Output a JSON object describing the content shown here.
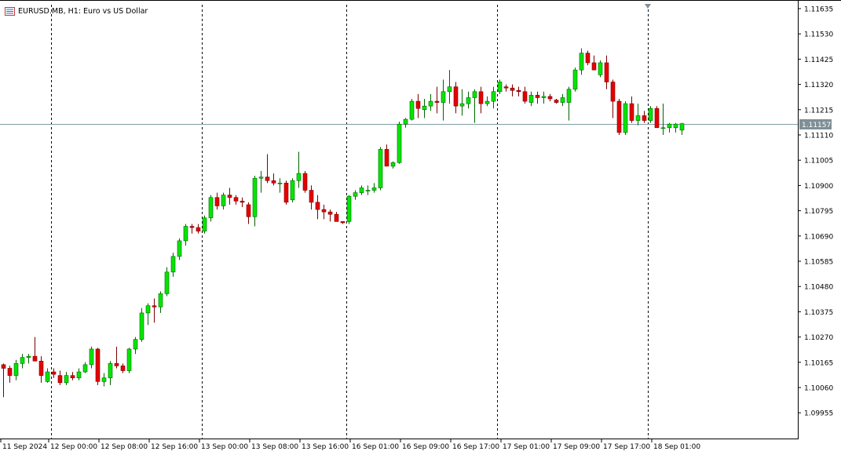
{
  "header": {
    "symbol": "EURUSD.MB",
    "timeframe": "H1",
    "description": "Euro vs US Dollar",
    "title_text": "EURUSD.MB, H1:  Euro vs US Dollar"
  },
  "colors": {
    "background": "#ffffff",
    "bull_candle": "#00e600",
    "bear_candle": "#e60000",
    "candle_outline": "#006400",
    "grid_dashed": "#000000",
    "bid_line": "#7f9fa6",
    "price_tag": "#7f8f96"
  },
  "current_price_label": "1.11157",
  "chart_data": {
    "type": "candlestick",
    "symbol": "EURUSD.MB",
    "timeframe": "H1",
    "y_axis_ticks": [
      "1.11635",
      "1.11530",
      "1.11425",
      "1.11320",
      "1.11215",
      "1.11110",
      "1.11005",
      "1.10900",
      "1.10795",
      "1.10690",
      "1.10585",
      "1.10480",
      "1.10375",
      "1.10270",
      "1.10165",
      "1.10060",
      "1.09955"
    ],
    "ylim": [
      1.0989,
      1.1165
    ],
    "x_axis_labels": [
      "11 Sep 2024",
      "12 Sep 00:00",
      "12 Sep 08:00",
      "12 Sep 16:00",
      "13 Sep 00:00",
      "13 Sep 08:00",
      "13 Sep 16:00",
      "16 Sep 01:00",
      "16 Sep 09:00",
      "16 Sep 17:00",
      "17 Sep 01:00",
      "17 Sep 09:00",
      "17 Sep 17:00",
      "18 Sep 01:00"
    ],
    "period_separators": [
      "12 Sep 00:00",
      "13 Sep 00:00",
      "16 Sep 01:00",
      "17 Sep 01:00",
      "18 Sep 01:00"
    ],
    "current_price": 1.11157,
    "grid": false,
    "candles": [
      [
        1.10155,
        1.1016,
        1.1002,
        1.1014
      ],
      [
        1.1014,
        1.1015,
        1.1008,
        1.1011
      ],
      [
        1.1011,
        1.10175,
        1.1009,
        1.1016
      ],
      [
        1.1016,
        1.102,
        1.1014,
        1.10185
      ],
      [
        1.10185,
        1.102,
        1.1016,
        1.1019
      ],
      [
        1.1019,
        1.1027,
        1.1017,
        1.1017
      ],
      [
        1.1017,
        1.1019,
        1.1008,
        1.1011
      ],
      [
        1.10085,
        1.1014,
        1.1008,
        1.10125
      ],
      [
        1.10125,
        1.1014,
        1.101,
        1.10115
      ],
      [
        1.1011,
        1.1013,
        1.1007,
        1.1008
      ],
      [
        1.1008,
        1.10125,
        1.1007,
        1.1011
      ],
      [
        1.1011,
        1.10125,
        1.1009,
        1.101
      ],
      [
        1.101,
        1.1014,
        1.1009,
        1.10125
      ],
      [
        1.10125,
        1.10165,
        1.1012,
        1.10155
      ],
      [
        1.10155,
        1.1023,
        1.1014,
        1.1022
      ],
      [
        1.1022,
        1.10225,
        1.1007,
        1.10085
      ],
      [
        1.10085,
        1.1012,
        1.10065,
        1.101
      ],
      [
        1.101,
        1.1017,
        1.1007,
        1.1016
      ],
      [
        1.1016,
        1.1023,
        1.1014,
        1.1015
      ],
      [
        1.1015,
        1.1016,
        1.1012,
        1.1013
      ],
      [
        1.1013,
        1.10225,
        1.1012,
        1.1022
      ],
      [
        1.1022,
        1.1027,
        1.102,
        1.1026
      ],
      [
        1.1026,
        1.1039,
        1.1025,
        1.1037
      ],
      [
        1.1037,
        1.1041,
        1.1032,
        1.104
      ],
      [
        1.104,
        1.1043,
        1.1033,
        1.10395
      ],
      [
        1.10395,
        1.1046,
        1.1037,
        1.1045
      ],
      [
        1.1045,
        1.1056,
        1.1044,
        1.1054
      ],
      [
        1.1054,
        1.1062,
        1.1052,
        1.10605
      ],
      [
        1.10605,
        1.1068,
        1.1059,
        1.1067
      ],
      [
        1.1067,
        1.1074,
        1.1065,
        1.1073
      ],
      [
        1.1073,
        1.1074,
        1.107,
        1.10725
      ],
      [
        1.10725,
        1.1074,
        1.107,
        1.1071
      ],
      [
        1.1071,
        1.10775,
        1.107,
        1.10765
      ],
      [
        1.10765,
        1.1086,
        1.1075,
        1.1085
      ],
      [
        1.1085,
        1.1087,
        1.108,
        1.10815
      ],
      [
        1.10815,
        1.1087,
        1.108,
        1.1086
      ],
      [
        1.1086,
        1.1089,
        1.1082,
        1.1085
      ],
      [
        1.1085,
        1.1086,
        1.1082,
        1.10835
      ],
      [
        1.10835,
        1.1085,
        1.1081,
        1.1083
      ],
      [
        1.1082,
        1.1083,
        1.1074,
        1.1077
      ],
      [
        1.1077,
        1.1094,
        1.1073,
        1.1093
      ],
      [
        1.1093,
        1.1096,
        1.1087,
        1.10935
      ],
      [
        1.10935,
        1.1103,
        1.1091,
        1.1092
      ],
      [
        1.1092,
        1.1095,
        1.109,
        1.1091
      ],
      [
        1.1091,
        1.1093,
        1.1087,
        1.1091
      ],
      [
        1.1091,
        1.1092,
        1.1082,
        1.1083
      ],
      [
        1.1084,
        1.1093,
        1.1083,
        1.1092
      ],
      [
        1.1092,
        1.1104,
        1.1089,
        1.1095
      ],
      [
        1.1095,
        1.1096,
        1.1087,
        1.1088
      ],
      [
        1.1088,
        1.109,
        1.108,
        1.1083
      ],
      [
        1.1083,
        1.1086,
        1.1076,
        1.108
      ],
      [
        1.108,
        1.1082,
        1.1076,
        1.1079
      ],
      [
        1.1079,
        1.108,
        1.1075,
        1.1078
      ],
      [
        1.1078,
        1.1079,
        1.1075,
        1.1075
      ],
      [
        1.1075,
        1.1075,
        1.1074,
        1.10745
      ],
      [
        1.1075,
        1.1086,
        1.1074,
        1.10855
      ],
      [
        1.10855,
        1.1088,
        1.1084,
        1.1087
      ],
      [
        1.1087,
        1.109,
        1.1086,
        1.1089
      ],
      [
        1.1088,
        1.109,
        1.1086,
        1.1088
      ],
      [
        1.1088,
        1.1091,
        1.1087,
        1.1089
      ],
      [
        1.1089,
        1.1106,
        1.1088,
        1.1105
      ],
      [
        1.1105,
        1.1107,
        1.1098,
        1.1098
      ],
      [
        1.1098,
        1.11,
        1.1097,
        1.10995
      ],
      [
        1.10995,
        1.11165,
        1.1099,
        1.11155
      ],
      [
        1.11155,
        1.1118,
        1.1114,
        1.11175
      ],
      [
        1.11175,
        1.1126,
        1.1117,
        1.1125
      ],
      [
        1.1125,
        1.1128,
        1.1118,
        1.1122
      ],
      [
        1.11215,
        1.1126,
        1.1118,
        1.1123
      ],
      [
        1.1123,
        1.1128,
        1.1121,
        1.1125
      ],
      [
        1.1125,
        1.1131,
        1.112,
        1.11245
      ],
      [
        1.11245,
        1.1134,
        1.1117,
        1.1129
      ],
      [
        1.1129,
        1.1138,
        1.1124,
        1.1131
      ],
      [
        1.1131,
        1.1133,
        1.112,
        1.1123
      ],
      [
        1.1123,
        1.113,
        1.1119,
        1.1124
      ],
      [
        1.1124,
        1.1129,
        1.1122,
        1.11265
      ],
      [
        1.11265,
        1.113,
        1.1116,
        1.1129
      ],
      [
        1.1129,
        1.1131,
        1.112,
        1.1124
      ],
      [
        1.1124,
        1.1127,
        1.1123,
        1.1125
      ],
      [
        1.1125,
        1.1131,
        1.1122,
        1.1129
      ],
      [
        1.1129,
        1.1134,
        1.1128,
        1.1133
      ],
      [
        1.1131,
        1.1132,
        1.1129,
        1.11305
      ],
      [
        1.11305,
        1.1132,
        1.1127,
        1.11295
      ],
      [
        1.11295,
        1.1131,
        1.1127,
        1.1129
      ],
      [
        1.1129,
        1.1131,
        1.1124,
        1.1125
      ],
      [
        1.11245,
        1.1129,
        1.1123,
        1.11275
      ],
      [
        1.11275,
        1.1129,
        1.1124,
        1.11265
      ],
      [
        1.11265,
        1.1129,
        1.1124,
        1.1127
      ],
      [
        1.1127,
        1.1128,
        1.1125,
        1.1126
      ],
      [
        1.11255,
        1.1126,
        1.1124,
        1.11245
      ],
      [
        1.11245,
        1.1128,
        1.1123,
        1.11265
      ],
      [
        1.11245,
        1.1131,
        1.1117,
        1.113
      ],
      [
        1.113,
        1.1139,
        1.1129,
        1.1138
      ],
      [
        1.1138,
        1.1147,
        1.1136,
        1.1145
      ],
      [
        1.1145,
        1.1146,
        1.114,
        1.1141
      ],
      [
        1.1141,
        1.1144,
        1.1138,
        1.1138
      ],
      [
        1.1136,
        1.1142,
        1.1135,
        1.1141
      ],
      [
        1.1141,
        1.1144,
        1.113,
        1.1133
      ],
      [
        1.1133,
        1.1134,
        1.1118,
        1.1125
      ],
      [
        1.1125,
        1.1126,
        1.1111,
        1.1112
      ],
      [
        1.1112,
        1.1125,
        1.1111,
        1.1124
      ],
      [
        1.1124,
        1.1127,
        1.1116,
        1.1117
      ],
      [
        1.1117,
        1.1124,
        1.1115,
        1.1119
      ],
      [
        1.1119,
        1.1121,
        1.1116,
        1.1117
      ],
      [
        1.1117,
        1.1123,
        1.1116,
        1.1122
      ],
      [
        1.1122,
        1.1123,
        1.1114,
        1.1114
      ],
      [
        1.1114,
        1.1124,
        1.1111,
        1.1114
      ],
      [
        1.1114,
        1.1116,
        1.1112,
        1.11155
      ],
      [
        1.1114,
        1.1116,
        1.1112,
        1.11155
      ],
      [
        1.1113,
        1.1116,
        1.1111,
        1.11157
      ]
    ]
  }
}
